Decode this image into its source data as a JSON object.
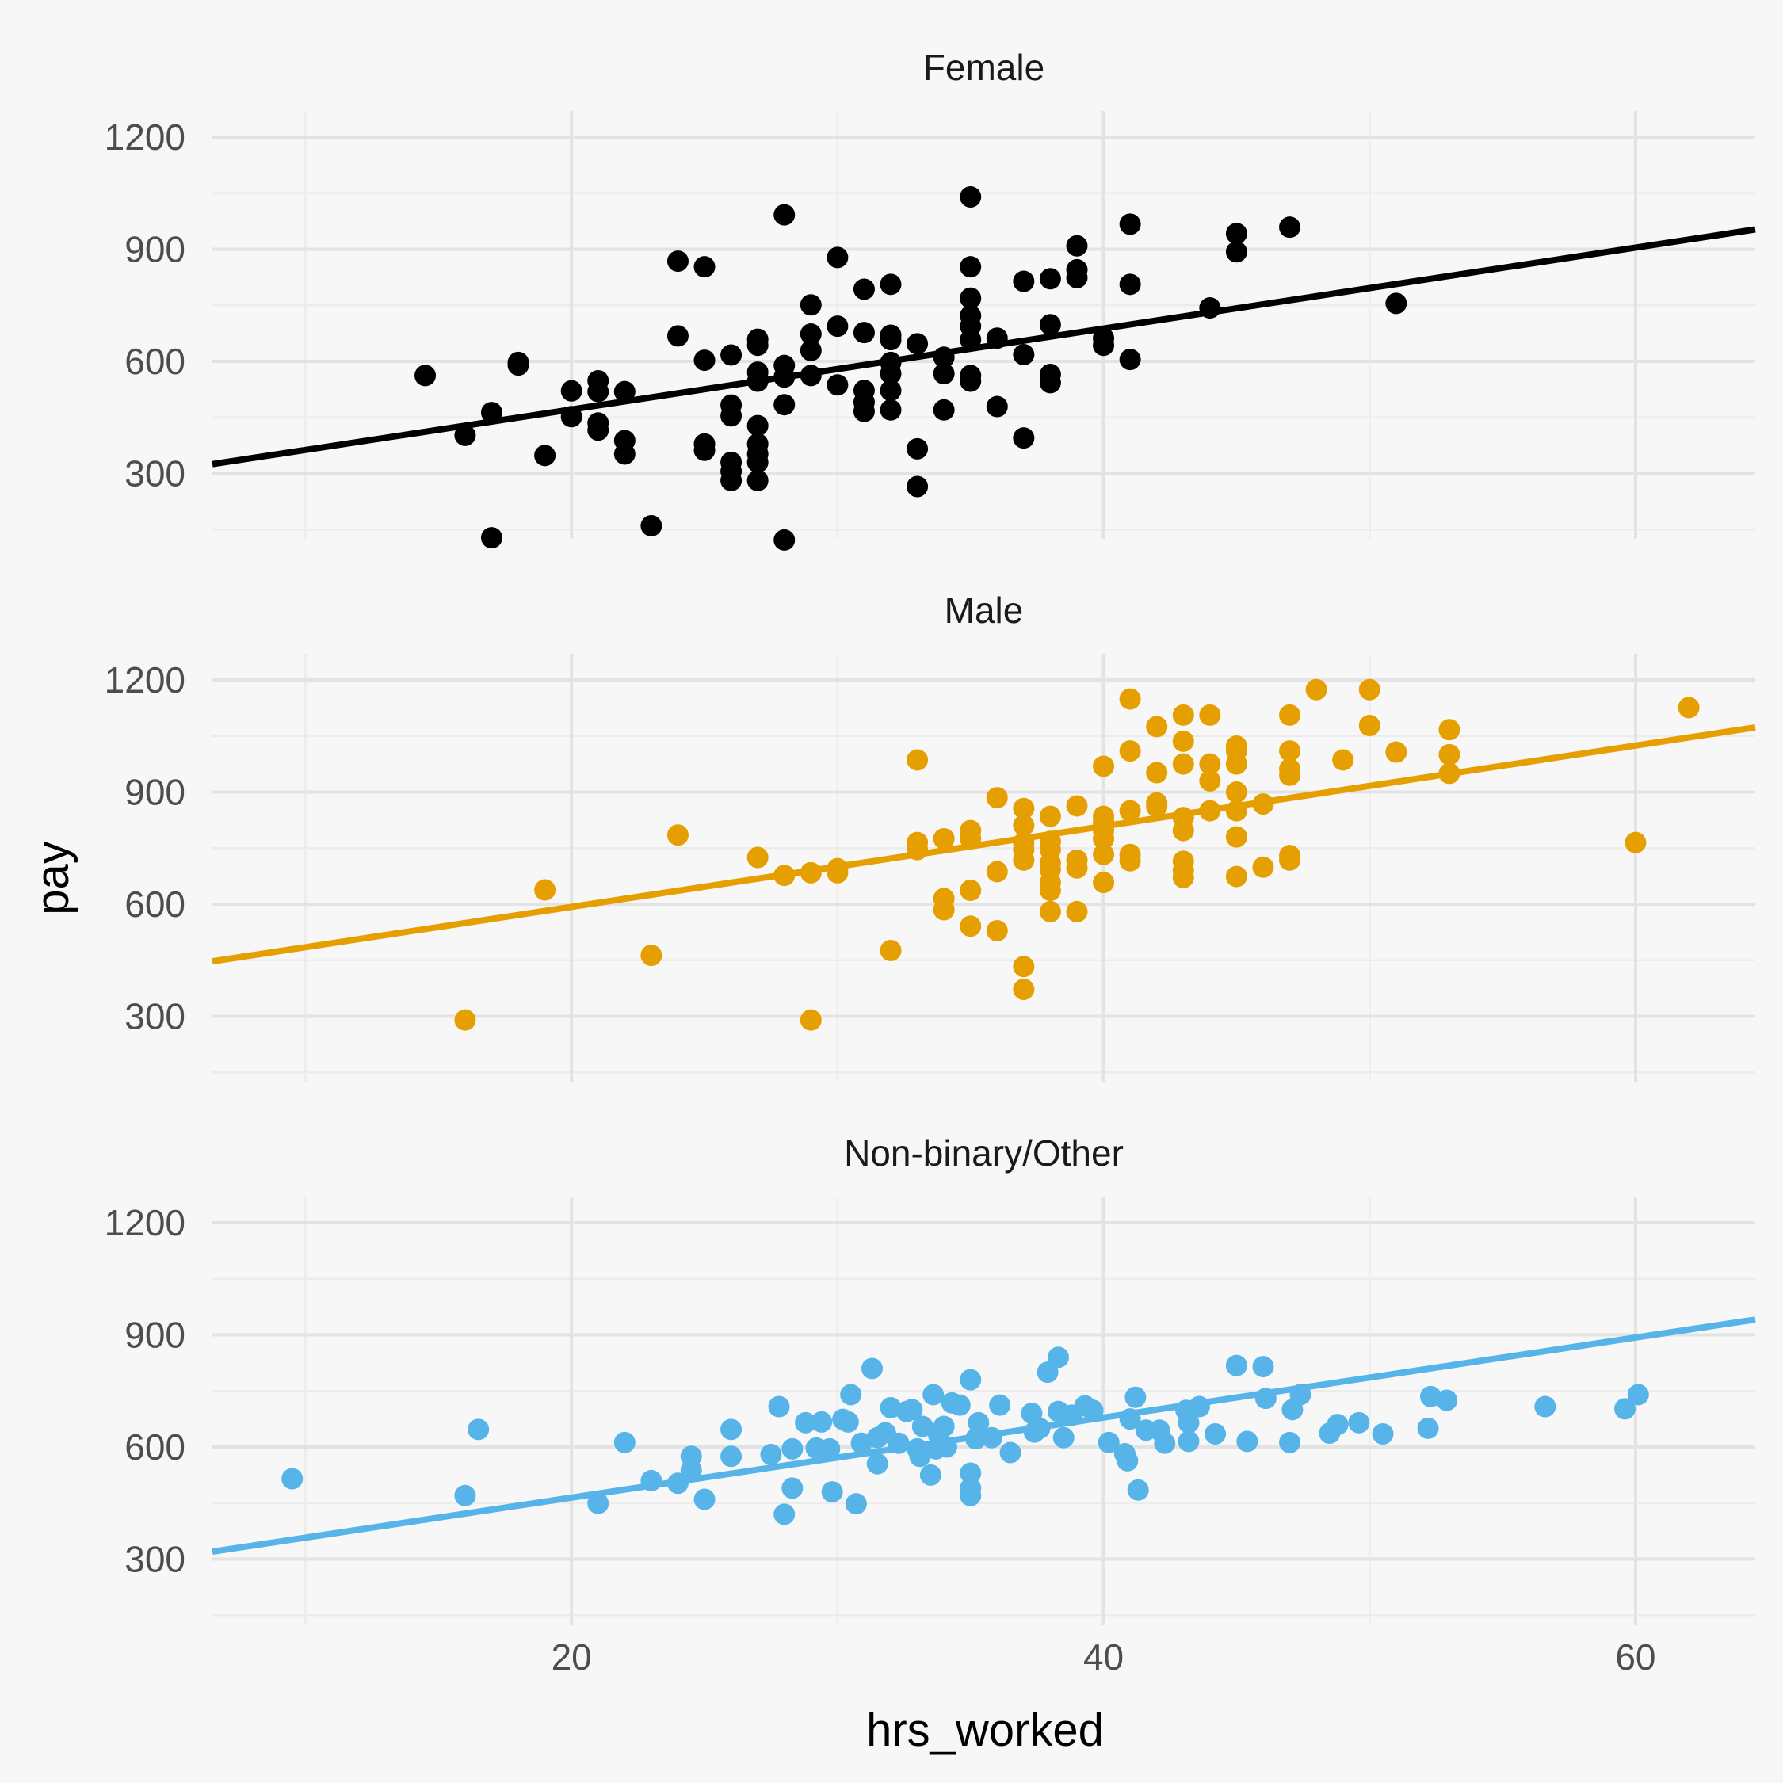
{
  "chart_data": {
    "type": "scatter",
    "xlabel": "hrs_worked",
    "ylabel": "pay",
    "xlim": [
      6.5,
      64.5
    ],
    "ylim": [
      125,
      1270
    ],
    "x_ticks": [
      20,
      40,
      60
    ],
    "y_ticks": [
      300,
      600,
      900,
      1200
    ],
    "grid": true,
    "legend": "none",
    "facets": [
      {
        "title": "Female",
        "color": "#000000",
        "line": {
          "x": [
            6.5,
            64.5
          ],
          "y": [
            325,
            953
          ]
        },
        "points": [
          [
            14.5,
            562
          ],
          [
            16,
            402
          ],
          [
            17,
            463
          ],
          [
            17,
            128
          ],
          [
            18,
            597
          ],
          [
            18,
            590
          ],
          [
            19,
            348
          ],
          [
            20,
            521
          ],
          [
            20,
            452
          ],
          [
            21,
            548
          ],
          [
            21,
            519
          ],
          [
            21,
            435
          ],
          [
            21,
            416
          ],
          [
            22,
            519
          ],
          [
            22,
            388
          ],
          [
            22,
            352
          ],
          [
            23,
            160
          ],
          [
            24,
            868
          ],
          [
            24,
            668
          ],
          [
            25,
            853
          ],
          [
            25,
            603
          ],
          [
            25,
            379
          ],
          [
            25,
            362
          ],
          [
            26,
            617
          ],
          [
            26,
            483
          ],
          [
            26,
            454
          ],
          [
            26,
            330
          ],
          [
            26,
            306
          ],
          [
            26,
            281
          ],
          [
            27,
            659
          ],
          [
            27,
            643
          ],
          [
            27,
            571
          ],
          [
            27,
            547
          ],
          [
            27,
            428
          ],
          [
            27,
            379
          ],
          [
            27,
            352
          ],
          [
            27,
            330
          ],
          [
            27,
            281
          ],
          [
            28,
            992
          ],
          [
            28,
            589
          ],
          [
            28,
            558
          ],
          [
            28,
            484
          ],
          [
            28,
            122
          ],
          [
            29,
            751
          ],
          [
            29,
            673
          ],
          [
            29,
            629
          ],
          [
            29,
            562
          ],
          [
            30,
            878
          ],
          [
            30,
            694
          ],
          [
            30,
            537
          ],
          [
            31,
            793
          ],
          [
            31,
            677
          ],
          [
            31,
            522
          ],
          [
            31,
            491
          ],
          [
            31,
            466
          ],
          [
            32,
            806
          ],
          [
            32,
            670
          ],
          [
            32,
            658
          ],
          [
            32,
            597
          ],
          [
            32,
            567
          ],
          [
            32,
            522
          ],
          [
            32,
            470
          ],
          [
            33,
            647
          ],
          [
            33,
            366
          ],
          [
            33,
            265
          ],
          [
            34,
            611
          ],
          [
            34,
            567
          ],
          [
            34,
            470
          ],
          [
            35,
            1040
          ],
          [
            35,
            853
          ],
          [
            35,
            769
          ],
          [
            35,
            722
          ],
          [
            35,
            694
          ],
          [
            35,
            658
          ],
          [
            35,
            562
          ],
          [
            35,
            547
          ],
          [
            36,
            662
          ],
          [
            36,
            479
          ],
          [
            37,
            814
          ],
          [
            37,
            618
          ],
          [
            37,
            395
          ],
          [
            38,
            821
          ],
          [
            38,
            698
          ],
          [
            38,
            565
          ],
          [
            38,
            543
          ],
          [
            39,
            909
          ],
          [
            39,
            845
          ],
          [
            39,
            824
          ],
          [
            40,
            662
          ],
          [
            40,
            643
          ],
          [
            41,
            967
          ],
          [
            41,
            806
          ],
          [
            41,
            605
          ],
          [
            44,
            743
          ],
          [
            45,
            942
          ],
          [
            45,
            893
          ],
          [
            47,
            959
          ],
          [
            51,
            755
          ]
        ]
      },
      {
        "title": "Male",
        "color": "#E69F00",
        "line": {
          "x": [
            6.5,
            64.5
          ],
          "y": [
            447,
            1073
          ]
        },
        "points": [
          [
            16,
            290
          ],
          [
            19,
            638
          ],
          [
            23,
            463
          ],
          [
            24,
            785
          ],
          [
            27,
            725
          ],
          [
            28,
            677
          ],
          [
            29,
            684
          ],
          [
            29,
            290
          ],
          [
            30,
            695
          ],
          [
            30,
            684
          ],
          [
            32,
            476
          ],
          [
            33,
            986
          ],
          [
            33,
            765
          ],
          [
            33,
            746
          ],
          [
            34,
            775
          ],
          [
            34,
            615
          ],
          [
            34,
            585
          ],
          [
            35,
            797
          ],
          [
            35,
            775
          ],
          [
            35,
            637
          ],
          [
            35,
            541
          ],
          [
            36,
            885
          ],
          [
            36,
            687
          ],
          [
            36,
            529
          ],
          [
            37,
            856
          ],
          [
            37,
            811
          ],
          [
            37,
            765
          ],
          [
            37,
            746
          ],
          [
            37,
            718
          ],
          [
            37,
            433
          ],
          [
            37,
            372
          ],
          [
            38,
            835
          ],
          [
            38,
            768
          ],
          [
            38,
            746
          ],
          [
            38,
            710
          ],
          [
            38,
            692
          ],
          [
            38,
            658
          ],
          [
            38,
            637
          ],
          [
            38,
            580
          ],
          [
            39,
            863
          ],
          [
            39,
            718
          ],
          [
            39,
            697
          ],
          [
            39,
            580
          ],
          [
            40,
            835
          ],
          [
            40,
            819
          ],
          [
            40,
            797
          ],
          [
            40,
            775
          ],
          [
            40,
            733
          ],
          [
            40,
            969
          ],
          [
            40,
            658
          ],
          [
            41,
            1149
          ],
          [
            41,
            1010
          ],
          [
            41,
            850
          ],
          [
            41,
            733
          ],
          [
            41,
            716
          ],
          [
            42,
            1075
          ],
          [
            42,
            952
          ],
          [
            42,
            871
          ],
          [
            42,
            861
          ],
          [
            43,
            1106
          ],
          [
            43,
            1036
          ],
          [
            43,
            975
          ],
          [
            43,
            832
          ],
          [
            43,
            797
          ],
          [
            43,
            715
          ],
          [
            43,
            690
          ],
          [
            43,
            671
          ],
          [
            44,
            1106
          ],
          [
            44,
            975
          ],
          [
            44,
            930
          ],
          [
            44,
            850
          ],
          [
            45,
            1023
          ],
          [
            45,
            1010
          ],
          [
            45,
            975
          ],
          [
            45,
            900
          ],
          [
            45,
            850
          ],
          [
            45,
            780
          ],
          [
            45,
            674
          ],
          [
            46,
            868
          ],
          [
            46,
            699
          ],
          [
            47,
            1106
          ],
          [
            47,
            1010
          ],
          [
            47,
            962
          ],
          [
            47,
            945
          ],
          [
            47,
            730
          ],
          [
            47,
            718
          ],
          [
            48,
            1174
          ],
          [
            49,
            986
          ],
          [
            50,
            1174
          ],
          [
            50,
            1078
          ],
          [
            51,
            1007
          ],
          [
            53,
            1067
          ],
          [
            53,
            1000
          ],
          [
            53,
            950
          ],
          [
            60,
            765
          ],
          [
            62,
            1126
          ]
        ]
      },
      {
        "title": "Non-binary/Other",
        "color": "#56B4E9",
        "line": {
          "x": [
            6.5,
            64.5
          ],
          "y": [
            320,
            941
          ]
        },
        "points": [
          [
            9.5,
            515
          ],
          [
            16,
            470
          ],
          [
            16.5,
            647
          ],
          [
            21,
            449
          ],
          [
            22,
            612
          ],
          [
            23,
            510
          ],
          [
            24,
            503
          ],
          [
            24.5,
            538
          ],
          [
            24.5,
            575
          ],
          [
            25,
            460
          ],
          [
            26,
            575
          ],
          [
            26,
            647
          ],
          [
            27.5,
            580
          ],
          [
            27.8,
            708
          ],
          [
            28,
            420
          ],
          [
            28.3,
            595
          ],
          [
            28.3,
            490
          ],
          [
            28.8,
            665
          ],
          [
            29.2,
            597
          ],
          [
            29.4,
            667
          ],
          [
            29.7,
            595
          ],
          [
            29.8,
            480
          ],
          [
            30.2,
            674
          ],
          [
            30.4,
            667
          ],
          [
            30.5,
            740
          ],
          [
            30.7,
            448
          ],
          [
            30.9,
            610
          ],
          [
            31.3,
            810
          ],
          [
            31.5,
            625
          ],
          [
            31.5,
            555
          ],
          [
            31.8,
            638
          ],
          [
            32,
            705
          ],
          [
            32.3,
            610
          ],
          [
            32.6,
            695
          ],
          [
            32.8,
            700
          ],
          [
            33,
            595
          ],
          [
            33.1,
            575
          ],
          [
            33.2,
            655
          ],
          [
            33.5,
            525
          ],
          [
            33.6,
            740
          ],
          [
            33.7,
            595
          ],
          [
            33.8,
            632
          ],
          [
            34,
            655
          ],
          [
            34.1,
            600
          ],
          [
            34.3,
            718
          ],
          [
            34.6,
            712
          ],
          [
            35,
            780
          ],
          [
            35,
            530
          ],
          [
            35,
            490
          ],
          [
            35,
            470
          ],
          [
            35.2,
            622
          ],
          [
            35.3,
            665
          ],
          [
            35.8,
            625
          ],
          [
            36.1,
            712
          ],
          [
            36.5,
            585
          ],
          [
            37.3,
            690
          ],
          [
            37.4,
            640
          ],
          [
            37.6,
            650
          ],
          [
            37.9,
            800
          ],
          [
            38.3,
            840
          ],
          [
            38.3,
            695
          ],
          [
            38.5,
            625
          ],
          [
            38.8,
            685
          ],
          [
            39.3,
            710
          ],
          [
            39.6,
            698
          ],
          [
            40.2,
            612
          ],
          [
            40.8,
            582
          ],
          [
            40.9,
            563
          ],
          [
            41,
            675
          ],
          [
            41.2,
            733
          ],
          [
            41.3,
            485
          ],
          [
            41.6,
            645
          ],
          [
            42.1,
            645
          ],
          [
            42.3,
            610
          ],
          [
            43.1,
            698
          ],
          [
            43.2,
            665
          ],
          [
            43.2,
            615
          ],
          [
            43.6,
            708
          ],
          [
            44.2,
            635
          ],
          [
            45,
            818
          ],
          [
            45.4,
            615
          ],
          [
            46,
            815
          ],
          [
            46.1,
            730
          ],
          [
            47,
            612
          ],
          [
            47.1,
            700
          ],
          [
            47.4,
            740
          ],
          [
            48.5,
            637
          ],
          [
            48.8,
            660
          ],
          [
            49.6,
            665
          ],
          [
            50.5,
            635
          ],
          [
            52.3,
            735
          ],
          [
            52.9,
            725
          ],
          [
            52.2,
            650
          ],
          [
            56.6,
            708
          ],
          [
            59.6,
            702
          ],
          [
            60.1,
            740
          ]
        ]
      }
    ]
  }
}
